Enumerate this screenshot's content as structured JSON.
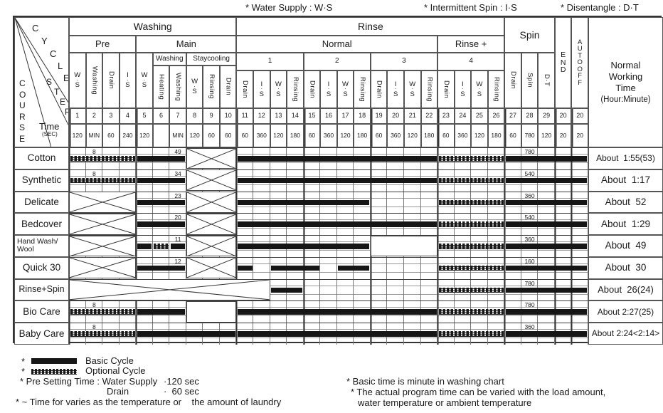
{
  "legend_top": {
    "water_supply": "* Water Supply : W·S",
    "intermittent_spin": "* Intermittent Spin : I·S",
    "disentangle": "* Disentangle : D·T"
  },
  "corner": {
    "course": "COURSE",
    "cycle": "CYCLE",
    "step": "STEP",
    "time": "Time",
    "sec": "(SEC)"
  },
  "header": {
    "washing": "Washing",
    "rinse": "Rinse",
    "spin": "Spin",
    "end": "END",
    "autooff": "AUTOOFF",
    "pre": "Pre",
    "main": "Main",
    "normal": "Normal",
    "rinse_plus": "Rinse +",
    "main_washing": "Washing",
    "staycooling": "Staycooling",
    "groups": [
      "1",
      "2",
      "3",
      "4"
    ],
    "nwt_lines": [
      "Normal",
      "Working",
      "Time",
      "(Hour:Minute)"
    ]
  },
  "columns": [
    {
      "label": "W·S",
      "style": "stack",
      "step": "1",
      "time": "120"
    },
    {
      "label": "Washing",
      "style": "vert",
      "step": "2",
      "time": "MIN"
    },
    {
      "label": "Drain",
      "style": "vert",
      "step": "3",
      "time": "60"
    },
    {
      "label": "I·S",
      "style": "stack",
      "step": "4",
      "time": "240"
    },
    {
      "label": "W·S",
      "style": "stack",
      "step": "5",
      "time": "120"
    },
    {
      "label": "Heating",
      "style": "vert",
      "step": "6",
      "time": ""
    },
    {
      "label": "Washing",
      "style": "vert",
      "step": "7",
      "time": "MIN"
    },
    {
      "label": "W·S",
      "style": "stack",
      "step": "8",
      "time": "120"
    },
    {
      "label": "Rinsing",
      "style": "vert",
      "step": "9",
      "time": "60"
    },
    {
      "label": "Drain",
      "style": "vert",
      "step": "10",
      "time": "60"
    },
    {
      "label": "Drain",
      "style": "vert",
      "step": "11",
      "time": "60"
    },
    {
      "label": "I·S",
      "style": "stack",
      "step": "12",
      "time": "360"
    },
    {
      "label": "W·S",
      "style": "stack",
      "step": "13",
      "time": "120"
    },
    {
      "label": "Rinsing",
      "style": "vert",
      "step": "14",
      "time": "180"
    },
    {
      "label": "Drain",
      "style": "vert",
      "step": "15",
      "time": "60"
    },
    {
      "label": "I·S",
      "style": "stack",
      "step": "16",
      "time": "360"
    },
    {
      "label": "W·S",
      "style": "stack",
      "step": "17",
      "time": "120"
    },
    {
      "label": "Rinsing",
      "style": "vert",
      "step": "18",
      "time": "180"
    },
    {
      "label": "Drain",
      "style": "vert",
      "step": "19",
      "time": "60"
    },
    {
      "label": "I·S",
      "style": "stack",
      "step": "20",
      "time": "360"
    },
    {
      "label": "W·S",
      "style": "stack",
      "step": "21",
      "time": "120"
    },
    {
      "label": "Rinsing",
      "style": "vert",
      "step": "22",
      "time": "180"
    },
    {
      "label": "Drain",
      "style": "vert",
      "step": "23",
      "time": "60"
    },
    {
      "label": "I·S",
      "style": "stack",
      "step": "24",
      "time": "360"
    },
    {
      "label": "W·S",
      "style": "stack",
      "step": "25",
      "time": "120"
    },
    {
      "label": "Rinsing",
      "style": "vert",
      "step": "26",
      "time": "180"
    },
    {
      "label": "Drain",
      "style": "vert",
      "step": "27",
      "time": "60"
    },
    {
      "label": "Spin",
      "style": "vert",
      "step": "28",
      "time": "780"
    },
    {
      "label": "D·T",
      "style": "vert",
      "step": "29",
      "time": "120"
    },
    {
      "label": "",
      "style": "none",
      "step": "20",
      "time": "20"
    },
    {
      "label": "",
      "style": "none",
      "step": "20",
      "time": "20"
    }
  ],
  "rows": [
    {
      "name": "Cotton",
      "about": "About  1:55(53)",
      "segments": [
        {
          "from": 1,
          "to": 4,
          "type": "hatch",
          "label": "8",
          "labelCol": 2
        },
        {
          "from": 5,
          "to": 7,
          "type": "solid",
          "label": "49",
          "labelCol": 7
        },
        {
          "from": 8,
          "to": 10,
          "type": "x"
        },
        {
          "from": 11,
          "to": 22,
          "type": "solid"
        },
        {
          "from": 23,
          "to": 26,
          "type": "hatch"
        },
        {
          "from": 27,
          "to": 31,
          "type": "solid",
          "label": "780",
          "labelCol": 28
        }
      ]
    },
    {
      "name": "Synthetic",
      "about": "About  1:17",
      "segments": [
        {
          "from": 1,
          "to": 4,
          "type": "hatch",
          "label": "8",
          "labelCol": 2
        },
        {
          "from": 5,
          "to": 7,
          "type": "solid",
          "label": "34",
          "labelCol": 7
        },
        {
          "from": 8,
          "to": 10,
          "type": "x"
        },
        {
          "from": 11,
          "to": 22,
          "type": "solid"
        },
        {
          "from": 23,
          "to": 26,
          "type": "hatch"
        },
        {
          "from": 27,
          "to": 31,
          "type": "solid",
          "label": "540",
          "labelCol": 28
        }
      ]
    },
    {
      "name": "Delicate",
      "about": "About  52",
      "segments": [
        {
          "from": 1,
          "to": 4,
          "type": "x"
        },
        {
          "from": 5,
          "to": 7,
          "type": "solid",
          "label": "23",
          "labelCol": 7
        },
        {
          "from": 8,
          "to": 10,
          "type": "x"
        },
        {
          "from": 11,
          "to": 18,
          "type": "solid"
        },
        {
          "from": 23,
          "to": 26,
          "type": "hatch"
        },
        {
          "from": 27,
          "to": 31,
          "type": "solid",
          "label": "360",
          "labelCol": 28
        }
      ]
    },
    {
      "name": "Bedcover",
      "about": "About  1:29",
      "segments": [
        {
          "from": 1,
          "to": 4,
          "type": "x"
        },
        {
          "from": 5,
          "to": 7,
          "type": "solid",
          "label": "20",
          "labelCol": 7
        },
        {
          "from": 8,
          "to": 10,
          "type": "x"
        },
        {
          "from": 11,
          "to": 22,
          "type": "solid"
        },
        {
          "from": 23,
          "to": 26,
          "type": "hatch"
        },
        {
          "from": 27,
          "to": 31,
          "type": "solid",
          "label": "540",
          "labelCol": 28
        }
      ]
    },
    {
      "name": "Hand Wash/\nWool",
      "about": "About  49",
      "segments": [
        {
          "from": 1,
          "to": 4,
          "type": "x"
        },
        {
          "from": 5,
          "to": 5,
          "type": "solid"
        },
        {
          "from": 6,
          "to": 6,
          "type": "hatch"
        },
        {
          "from": 7,
          "to": 7,
          "type": "solid",
          "label": "11",
          "labelCol": 7
        },
        {
          "from": 8,
          "to": 10,
          "type": "x"
        },
        {
          "from": 11,
          "to": 18,
          "type": "solid"
        },
        {
          "from": 19,
          "to": 22,
          "type": "blank"
        },
        {
          "from": 23,
          "to": 26,
          "type": "hatch"
        },
        {
          "from": 27,
          "to": 31,
          "type": "solid",
          "label": "360",
          "labelCol": 28
        }
      ]
    },
    {
      "name": "Quick 30",
      "about": "About  30",
      "segments": [
        {
          "from": 1,
          "to": 4,
          "type": "x"
        },
        {
          "from": 5,
          "to": 7,
          "type": "solid",
          "label": "12",
          "labelCol": 7
        },
        {
          "from": 8,
          "to": 10,
          "type": "x"
        },
        {
          "from": 11,
          "to": 11,
          "type": "solid"
        },
        {
          "from": 13,
          "to": 15,
          "type": "solid"
        },
        {
          "from": 17,
          "to": 18,
          "type": "solid"
        },
        {
          "from": 23,
          "to": 26,
          "type": "hatch"
        },
        {
          "from": 27,
          "to": 31,
          "type": "solid",
          "label": "160",
          "labelCol": 28
        }
      ]
    },
    {
      "name": "Rinse+Spin",
      "about": "About  26(24)",
      "segments": [
        {
          "from": 1,
          "to": 12,
          "type": "x"
        },
        {
          "from": 13,
          "to": 14,
          "type": "solid"
        },
        {
          "from": 23,
          "to": 26,
          "type": "hatch"
        },
        {
          "from": 27,
          "to": 31,
          "type": "solid",
          "label": "780",
          "labelCol": 28
        }
      ]
    },
    {
      "name": "Bio Care",
      "about": "About 2:27(25)",
      "segments": [
        {
          "from": 1,
          "to": 4,
          "type": "hatch",
          "label": "8",
          "labelCol": 2
        },
        {
          "from": 5,
          "to": 7,
          "type": "solid"
        },
        {
          "from": 8,
          "to": 10,
          "type": "blank"
        },
        {
          "from": 11,
          "to": 22,
          "type": "solid"
        },
        {
          "from": 23,
          "to": 26,
          "type": "hatch"
        },
        {
          "from": 27,
          "to": 31,
          "type": "solid",
          "label": "780",
          "labelCol": 28
        }
      ]
    },
    {
      "name": "Baby Care",
      "about": "About 2:24<2:14>",
      "segments": [
        {
          "from": 1,
          "to": 4,
          "type": "hatch",
          "label": "8",
          "labelCol": 2
        },
        {
          "from": 5,
          "to": 10,
          "type": "solid"
        },
        {
          "from": 11,
          "to": 22,
          "type": "solid"
        },
        {
          "from": 23,
          "to": 26,
          "type": "hatch"
        },
        {
          "from": 27,
          "to": 31,
          "type": "solid",
          "label": "360",
          "labelCol": 28
        }
      ]
    }
  ],
  "legend_bottom": {
    "basic_star": "*",
    "basic_label": "Basic Cycle",
    "optional_star": "*",
    "optional_label": "Optional Cycle",
    "pre_setting": "* Pre Setting Time : Water Supply",
    "pre_setting_value": "·120 sec",
    "drain_label": "Drain",
    "drain_value": "·  60 sec",
    "time_note": "* ~ Time for varies as the temperature or    the amount of laundry",
    "note1": "* Basic time is minute in washing chart",
    "note2": "* The actual program time can be varied with the load amount,",
    "note3": "water temperature or ambient temperature"
  }
}
